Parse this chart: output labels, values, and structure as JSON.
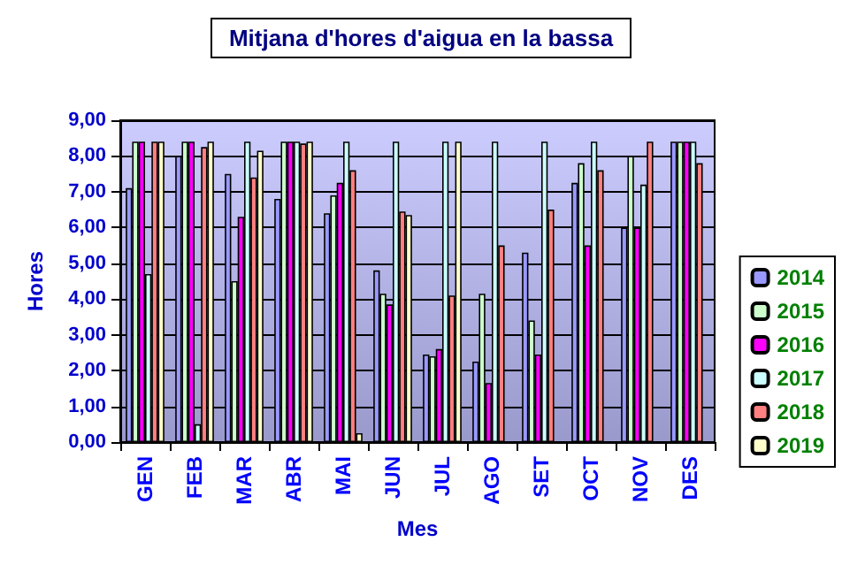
{
  "chart_data": {
    "type": "bar",
    "title": "Mitjana d'hores d'aigua en la bassa",
    "xlabel": "Mes",
    "ylabel": "Hores",
    "categories": [
      "GEN",
      "FEB",
      "MAR",
      "ABR",
      "MAI",
      "JUN",
      "JUL",
      "AGO",
      "SET",
      "OCT",
      "NOV",
      "DES"
    ],
    "series": [
      {
        "name": "2014",
        "color": "#9999ff",
        "values": [
          7.1,
          8.0,
          7.5,
          6.8,
          6.4,
          4.8,
          2.45,
          2.25,
          5.3,
          7.25,
          6.0,
          8.4
        ]
      },
      {
        "name": "2015",
        "color": "#ccffcc",
        "values": [
          8.4,
          8.4,
          4.5,
          8.4,
          6.9,
          4.15,
          2.4,
          4.15,
          3.4,
          7.8,
          8.0,
          8.4
        ]
      },
      {
        "name": "2016",
        "color": "#ff00ff",
        "values": [
          8.4,
          8.4,
          6.3,
          8.4,
          7.25,
          3.85,
          2.6,
          1.65,
          2.45,
          5.5,
          6.0,
          8.4
        ]
      },
      {
        "name": "2017",
        "color": "#ccffff",
        "values": [
          4.7,
          0.5,
          8.4,
          8.4,
          8.4,
          8.4,
          8.4,
          8.4,
          8.4,
          8.4,
          7.2,
          8.4
        ]
      },
      {
        "name": "2018",
        "color": "#ff8080",
        "values": [
          8.4,
          8.25,
          7.4,
          8.35,
          7.6,
          6.45,
          4.1,
          5.5,
          6.5,
          7.6,
          8.4,
          7.8
        ]
      },
      {
        "name": "2019",
        "color": "#ffffcc",
        "values": [
          8.4,
          8.4,
          8.15,
          8.4,
          0.25,
          6.35,
          8.4,
          null,
          null,
          null,
          null,
          null
        ]
      }
    ],
    "ylim": [
      0,
      9
    ],
    "yticks": [
      {
        "value": 0,
        "label": "0,00"
      },
      {
        "value": 1,
        "label": "1,00"
      },
      {
        "value": 2,
        "label": "2,00"
      },
      {
        "value": 3,
        "label": "3,00"
      },
      {
        "value": 4,
        "label": "4,00"
      },
      {
        "value": 5,
        "label": "5,00"
      },
      {
        "value": 6,
        "label": "6,00"
      },
      {
        "value": 7,
        "label": "7,00"
      },
      {
        "value": 8,
        "label": "8,00"
      },
      {
        "value": 9,
        "label": "9,00"
      }
    ],
    "grid": "y",
    "legend": "right"
  }
}
